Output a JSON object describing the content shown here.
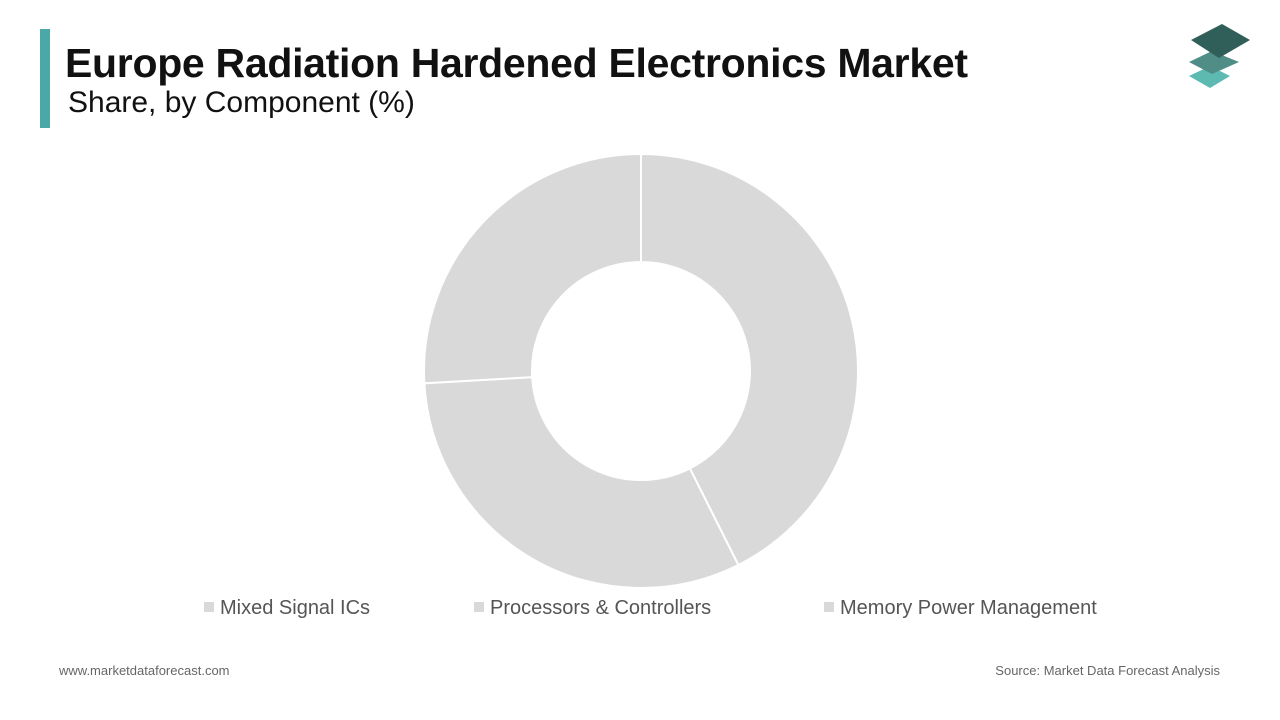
{
  "header": {
    "title": "Europe Radiation Hardened Electronics Market",
    "subtitle": "Share, by Component (%)"
  },
  "colors": {
    "accent": "#4aa9a6",
    "slice": "#d9d9d9",
    "logo_dark": "#2f5f58",
    "logo_mid": "#4f8d86",
    "logo_light": "#5cbab2"
  },
  "chart_data": {
    "type": "pie",
    "variant": "donut",
    "categories": [
      "Mixed Signal ICs",
      "Processors & Controllers",
      "Memory Power Management"
    ],
    "values": [
      42.6,
      31.5,
      25.9
    ],
    "legend_position": "bottom",
    "data_labels": false
  },
  "footer": {
    "website": "www.marketdataforecast.com",
    "source": "Source: Market Data Forecast Analysis"
  }
}
